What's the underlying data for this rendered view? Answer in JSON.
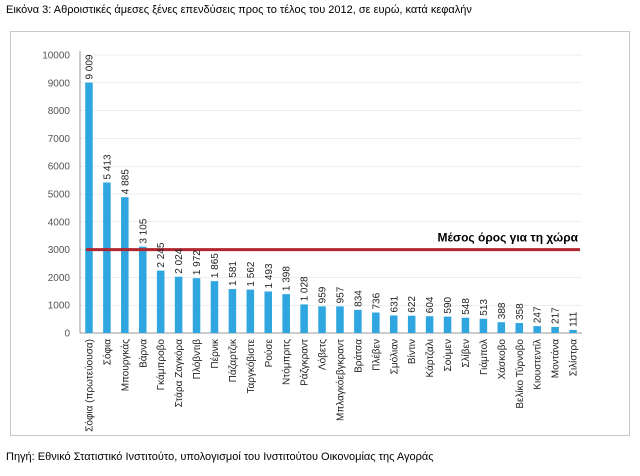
{
  "title": "Εικόνα 3: Αθροιστικές άμεσες ξένες επενδύσεις προς το τέλος του 2012, σε ευρώ, κατά κεφαλήν",
  "source": "Πηγή: Εθνικό Στατιστικό Ινστιτούτο, υπολογισμοί του Ινστιτούτου Οικονομίας της Αγοράς",
  "colors": {
    "bar": "#2fa6e0",
    "reference_line": "#b0262e",
    "gridline": "#dcdcdc"
  },
  "chart_data": {
    "type": "bar",
    "title": "",
    "xlabel": "",
    "ylabel": "",
    "ylim": [
      0,
      10000
    ],
    "yticks": [
      0,
      1000,
      2000,
      3000,
      4000,
      5000,
      6000,
      7000,
      8000,
      9000,
      10000
    ],
    "ytick_labels": [
      "0",
      "1000",
      "2000",
      "3000",
      "4000",
      "5000",
      "6000",
      "7000",
      "8000",
      "9000",
      "10000"
    ],
    "grid": false,
    "categories": [
      "Σόφια (πρωτεύουσα)",
      "Σόφια",
      "Μπουργκάς",
      "Βάρνα",
      "Γκάμπροβο",
      "Στάρα Ζαγκόρα",
      "Πλόβντιβ",
      "Πέρνικ",
      "Πάζαρτζικ",
      "Ταργκόβιστε",
      "Ρούσε",
      "Ντόμπριτς",
      "Ράζγκραντ",
      "Λόβετς",
      "Μπλαγκόεβγκραντ",
      "Βράτσα",
      "Πλέβεν",
      "Σμόλιαν",
      "Βίντιν",
      "Κάρτζαλι",
      "Σούμεν",
      "Σλίβεν",
      "Γιάμπολ",
      "Χάσκοβο",
      "Βελίκο Τύρνοβο",
      "Κιουστεντίλ",
      "Μοντάνα",
      "Σιλίστρα"
    ],
    "values": [
      9009,
      5413,
      4885,
      3105,
      2245,
      2024,
      1972,
      1865,
      1581,
      1562,
      1493,
      1398,
      1028,
      959,
      957,
      834,
      736,
      631,
      622,
      604,
      590,
      548,
      513,
      388,
      358,
      247,
      217,
      111
    ],
    "value_labels": [
      "9 009",
      "5 413",
      "4 885",
      "3 105",
      "2 245",
      "2 024",
      "1 972",
      "1 865",
      "1 581",
      "1 562",
      "1 493",
      "1 398",
      "1 028",
      "959",
      "957",
      "834",
      "736",
      "631",
      "622",
      "604",
      "590",
      "548",
      "513",
      "388",
      "358",
      "247",
      "217",
      "111"
    ],
    "reference_line": {
      "label": "Μέσος όρος για τη χώρα",
      "value": 3000
    }
  }
}
